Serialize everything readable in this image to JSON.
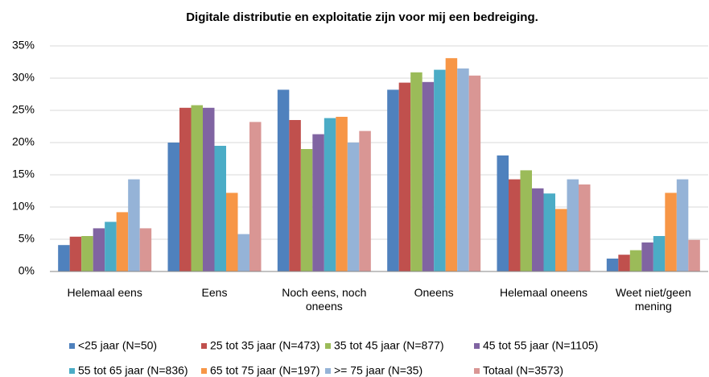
{
  "chart_data": {
    "type": "bar",
    "title": "Digitale distributie en exploitatie zijn voor mij een bedreiging.",
    "categories": [
      "Helemaal eens",
      "Eens",
      "Noch eens, noch oneens",
      "Oneens",
      "Helemaal oneens",
      "Weet niet/geen mening"
    ],
    "series": [
      {
        "name": "<25 jaar (N=50)",
        "color": "#4f81bd",
        "values": [
          4.1,
          20.0,
          28.2,
          28.2,
          18.0,
          2.0
        ]
      },
      {
        "name": "25 tot 35 jaar (N=473)",
        "color": "#c0504d",
        "values": [
          5.4,
          25.4,
          23.5,
          29.3,
          14.3,
          2.6
        ]
      },
      {
        "name": "35 tot 45 jaar (N=877)",
        "color": "#9bbb59",
        "values": [
          5.5,
          25.8,
          19.0,
          30.9,
          15.7,
          3.3
        ]
      },
      {
        "name": "45 tot 55 jaar (N=1105)",
        "color": "#8064a2",
        "values": [
          6.7,
          25.4,
          21.3,
          29.4,
          12.9,
          4.5
        ]
      },
      {
        "name": "55 tot 65 jaar (N=836)",
        "color": "#4bacc6",
        "values": [
          7.7,
          19.5,
          23.8,
          31.3,
          12.1,
          5.5
        ]
      },
      {
        "name": "65 tot 75 jaar (N=197)",
        "color": "#f79646",
        "values": [
          9.2,
          12.2,
          24.0,
          33.1,
          9.7,
          12.2
        ]
      },
      {
        "name": ">= 75 jaar (N=35)",
        "color": "#95b3d7",
        "values": [
          14.3,
          5.8,
          20.0,
          31.5,
          14.3,
          14.3
        ]
      },
      {
        "name": "Totaal (N=3573)",
        "color": "#d99694",
        "values": [
          6.7,
          23.2,
          21.8,
          30.4,
          13.5,
          4.9
        ]
      }
    ],
    "ylim": [
      0,
      35
    ],
    "yticks": [
      {
        "value": 0,
        "label": "0%"
      },
      {
        "value": 5,
        "label": "5%"
      },
      {
        "value": 10,
        "label": "10%"
      },
      {
        "value": 15,
        "label": "15%"
      },
      {
        "value": 20,
        "label": "20%"
      },
      {
        "value": 25,
        "label": "25%"
      },
      {
        "value": 30,
        "label": "30%"
      },
      {
        "value": 35,
        "label": "35%"
      }
    ],
    "grid": true
  }
}
